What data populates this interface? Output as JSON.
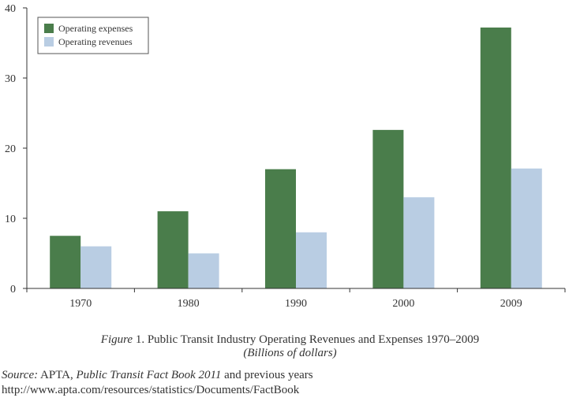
{
  "chart_data": {
    "type": "bar",
    "categories": [
      "1970",
      "1980",
      "1990",
      "2000",
      "2009"
    ],
    "series": [
      {
        "name": "Operating expenses",
        "values": [
          7.5,
          11,
          17,
          22.6,
          37.2
        ],
        "color": "#4a7d4b"
      },
      {
        "name": "Operating revenues",
        "values": [
          6,
          5,
          8,
          13,
          17.1
        ],
        "color": "#b9cde3"
      }
    ],
    "ylim": [
      0,
      40
    ],
    "yticks": [
      0,
      10,
      20,
      30,
      40
    ],
    "legend_position": "top-left",
    "grid": false
  },
  "caption": {
    "figure_word": "Figure",
    "title_rest": " 1. Public Transit Industry Operating Revenues and Expenses 1970–2009",
    "units": "(Billions of dollars)"
  },
  "source": {
    "label": "Source:",
    "org": " APTA, ",
    "book": "Public Transit Fact Book 2011",
    "rest": " and previous years",
    "url": "http://www.apta.com/resources/statistics/Documents/FactBook"
  }
}
